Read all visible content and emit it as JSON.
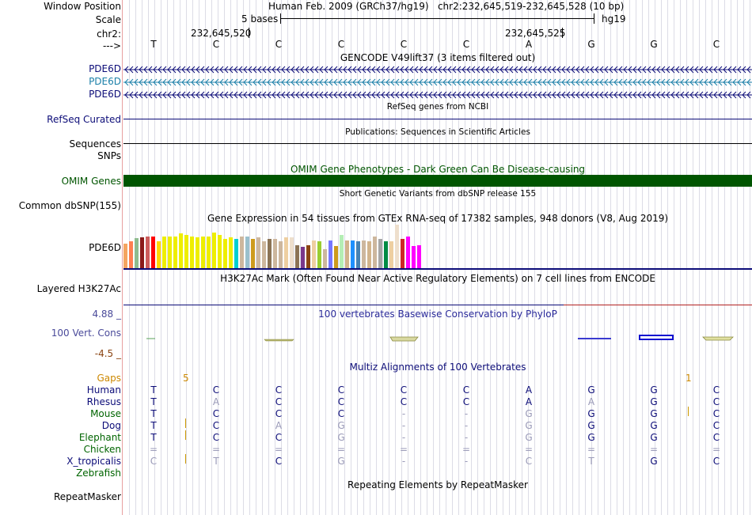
{
  "header": {
    "window_position_label": "Window Position",
    "assembly_text": "Human Feb. 2009 (GRCh37/hg19)   chr2:232,645,519-232,645,528 (10 bp)",
    "scale_label": "Scale",
    "scale_text": "5 bases",
    "scale_db": "hg19",
    "chr_label": "chr2:",
    "pos_left": "232,645,520",
    "pos_right": "232,645,525",
    "strand_label": "--->",
    "bases": [
      "T",
      "C",
      "C",
      "C",
      "C",
      "C",
      "A",
      "G",
      "G",
      "C"
    ]
  },
  "gencode": {
    "title": "GENCODE V49lift37 (3 items filtered out)",
    "genes": [
      {
        "name": "PDE6D",
        "color": "#0c0c78"
      },
      {
        "name": "PDE6D",
        "color": "#1a7fa8"
      },
      {
        "name": "PDE6D",
        "color": "#0c0c78"
      }
    ]
  },
  "refseq": {
    "title": "RefSeq genes from NCBI",
    "label": "RefSeq Curated",
    "color": "#0c0c78"
  },
  "pubs": {
    "title": "Publications: Sequences in Scientific Articles",
    "label": "Sequences"
  },
  "snps": {
    "label": "SNPs"
  },
  "omim": {
    "title": "OMIM Gene Phenotypes - Dark Green Can Be Disease-causing",
    "label": "OMIM Genes",
    "color": "#005500"
  },
  "dbsnp": {
    "title": "Short Genetic Variants from dbSNP release 155",
    "label": "Common dbSNP(155)"
  },
  "gtex": {
    "title": "Gene Expression in 54 tissues from GTEx RNA-seq of 17382 samples, 948 donors (V8, Aug 2019)",
    "label": "PDE6D",
    "values": [
      0.55,
      0.6,
      0.68,
      0.7,
      0.72,
      0.72,
      0.6,
      0.72,
      0.72,
      0.72,
      0.78,
      0.75,
      0.72,
      0.7,
      0.72,
      0.72,
      0.8,
      0.75,
      0.66,
      0.7,
      0.66,
      0.72,
      0.72,
      0.66,
      0.7,
      0.6,
      0.66,
      0.66,
      0.6,
      0.7,
      0.7,
      0.52,
      0.48,
      0.52,
      0.62,
      0.6,
      0.42,
      0.62,
      0.5,
      0.75,
      0.62,
      0.62,
      0.6,
      0.63,
      0.6,
      0.72,
      0.66,
      0.6,
      0.6,
      0.98,
      0.66,
      0.72,
      0.5,
      0.52
    ],
    "colors": [
      "#f4a460",
      "#ff7f50",
      "#8fbc8f",
      "#8b1a1a",
      "#cd5c5c",
      "#ff0000",
      "#ffd700",
      "#eeee00",
      "#eeee00",
      "#eeee00",
      "#eeee00",
      "#eeee00",
      "#eeee00",
      "#eeee00",
      "#eeee00",
      "#eeee00",
      "#eeee00",
      "#eeee00",
      "#eeee00",
      "#eeee00",
      "#00ced1",
      "#cdb79e",
      "#9ac0cd",
      "#cd9b1d",
      "#cdb79e",
      "#cdb79e",
      "#8b7355",
      "#cdb79e",
      "#cdb79e",
      "#eecfa1",
      "#eedfcc",
      "#8b7355",
      "#7a378b",
      "#8b4513",
      "#eecfa1",
      "#9acd32",
      "#cdb79e",
      "#7777ff",
      "#cd9b1d",
      "#b4eeb4",
      "#d2b48c",
      "#1e90ff",
      "#4682b4",
      "#cdb79e",
      "#d2b48c",
      "#cdb79e",
      "#a6a6a6",
      "#008b45",
      "#eecfa1",
      "#eedfcc",
      "#cd2626",
      "#ff00ff",
      "#ff00ff",
      "#ff00ff"
    ]
  },
  "h3k27ac": {
    "title": "H3K27Ac Mark (Often Found Near Active Regulatory Elements) on 7 cell lines from ENCODE",
    "label": "Layered H3K27Ac"
  },
  "cons": {
    "title": "100 vertebrates Basewise Conservation by PhyloP",
    "label": "100 Vert. Cons",
    "max": "4.88 _",
    "min": "-4.5 _"
  },
  "multiz": {
    "title": "Multiz Alignments of 100 Vertebrates",
    "gaps_label": "Gaps",
    "gap_left": "5",
    "gap_right": "1",
    "species": [
      {
        "name": "Human",
        "color": "#0c0c78",
        "bases": [
          "T",
          "C",
          "C",
          "C",
          "C",
          "C",
          "A",
          "G",
          "G",
          "C"
        ],
        "faded": [
          0,
          0,
          0,
          0,
          0,
          0,
          0,
          0,
          0,
          0
        ]
      },
      {
        "name": "Rhesus",
        "color": "#0c0c78",
        "bases": [
          "T",
          "A",
          "C",
          "C",
          "C",
          "C",
          "A",
          "A",
          "G",
          "C"
        ],
        "faded": [
          0,
          1,
          0,
          0,
          0,
          0,
          0,
          1,
          0,
          0
        ]
      },
      {
        "name": "Mouse",
        "color": "#006400",
        "bases": [
          "T",
          "C",
          "C",
          "C",
          "-",
          "-",
          "G",
          "G",
          "G",
          "C"
        ],
        "faded": [
          0,
          0,
          0,
          0,
          1,
          1,
          1,
          0,
          0,
          0
        ]
      },
      {
        "name": "Dog",
        "color": "#0c0c78",
        "bases": [
          "T",
          "C",
          "A",
          "G",
          "-",
          "-",
          "G",
          "G",
          "G",
          "C"
        ],
        "faded": [
          0,
          0,
          1,
          1,
          1,
          1,
          1,
          0,
          0,
          0
        ]
      },
      {
        "name": "Elephant",
        "color": "#006400",
        "bases": [
          "T",
          "C",
          "C",
          "G",
          "-",
          "-",
          "G",
          "G",
          "G",
          "C"
        ],
        "faded": [
          0,
          0,
          0,
          1,
          1,
          1,
          1,
          0,
          0,
          0
        ]
      },
      {
        "name": "Chicken",
        "color": "#006400",
        "bases": [
          "=",
          "=",
          "=",
          "=",
          "=",
          "=",
          "=",
          "=",
          "=",
          "="
        ],
        "faded": [
          1,
          1,
          1,
          1,
          1,
          1,
          1,
          1,
          1,
          1
        ]
      },
      {
        "name": "X_tropicalis",
        "color": "#0c0c78",
        "bases": [
          "C",
          "T",
          "C",
          "G",
          "-",
          "-",
          "C",
          "T",
          "G",
          "C"
        ],
        "faded": [
          1,
          1,
          0,
          1,
          1,
          1,
          1,
          1,
          0,
          0
        ]
      },
      {
        "name": "Zebrafish",
        "color": "#006400",
        "bases": [
          "",
          "",
          "",
          "",
          "",
          "",
          "",
          "",
          "",
          ""
        ],
        "faded": [
          0,
          0,
          0,
          0,
          0,
          0,
          0,
          0,
          0,
          0
        ]
      }
    ]
  },
  "rmsk": {
    "title": "Repeating Elements by RepeatMasker",
    "label": "RepeatMasker"
  }
}
